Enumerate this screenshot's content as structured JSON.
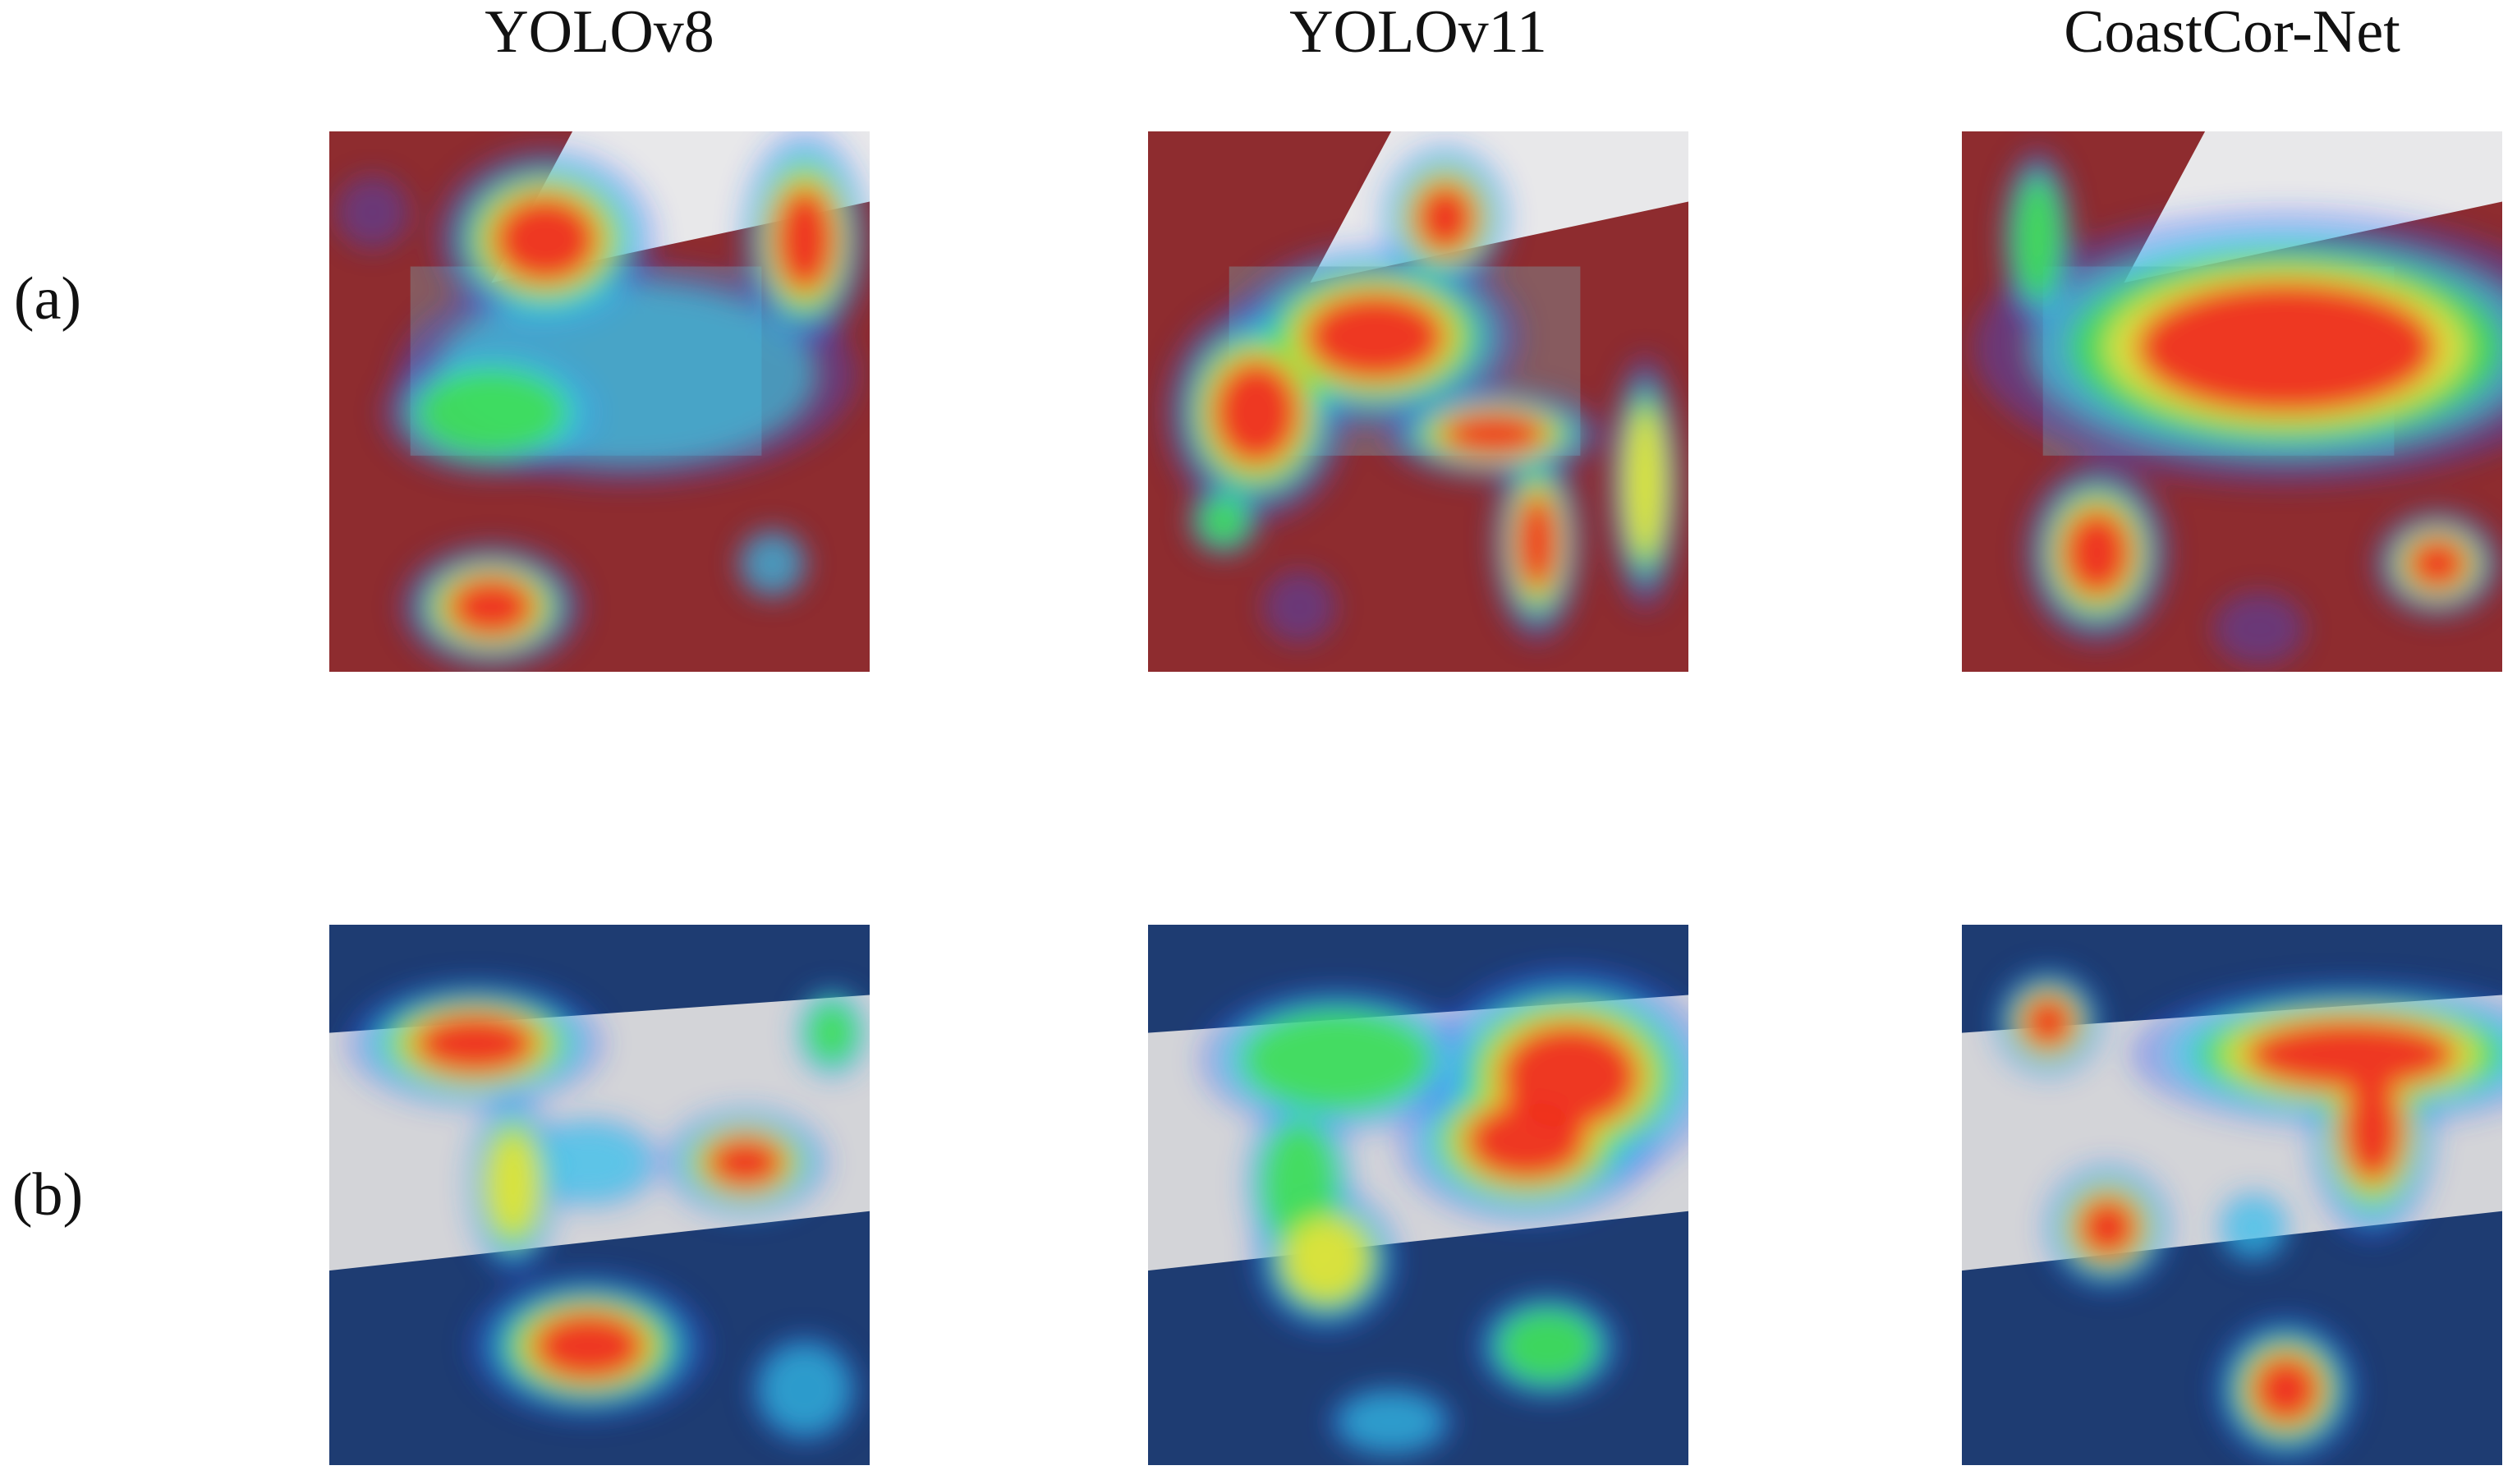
{
  "column_titles": [
    "YOLOv8",
    "YOLOv11",
    "CoastCor-Net"
  ],
  "row_labels": [
    "(a)",
    "(b)"
  ]
}
